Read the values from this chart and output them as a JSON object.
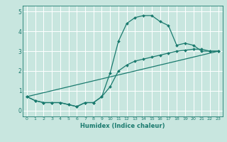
{
  "xlabel": "Humidex (Indice chaleur)",
  "ylabel": "",
  "background_color": "#c8e6df",
  "grid_color": "#ffffff",
  "line_color": "#1a7a6e",
  "xlim": [
    -0.5,
    23.5
  ],
  "ylim": [
    -0.3,
    5.3
  ],
  "xticks": [
    0,
    1,
    2,
    3,
    4,
    5,
    6,
    7,
    8,
    9,
    10,
    11,
    12,
    13,
    14,
    15,
    16,
    17,
    18,
    19,
    20,
    21,
    22,
    23
  ],
  "yticks": [
    0,
    1,
    2,
    3,
    4,
    5
  ],
  "curve1_x": [
    0,
    1,
    2,
    3,
    4,
    5,
    6,
    7,
    8,
    9,
    10,
    11,
    12,
    13,
    14,
    15,
    16,
    17,
    18,
    19,
    20,
    21,
    22,
    23
  ],
  "curve1_y": [
    0.7,
    0.5,
    0.4,
    0.4,
    0.4,
    0.3,
    0.2,
    0.4,
    0.4,
    0.7,
    1.9,
    3.5,
    4.4,
    4.7,
    4.8,
    4.8,
    4.5,
    4.3,
    3.3,
    3.4,
    3.3,
    3.0,
    3.0,
    3.0
  ],
  "curve2_x": [
    0,
    1,
    2,
    3,
    4,
    5,
    6,
    7,
    8,
    9,
    10,
    11,
    12,
    13,
    14,
    15,
    16,
    17,
    18,
    19,
    20,
    21,
    22,
    23
  ],
  "curve2_y": [
    0.7,
    0.5,
    0.4,
    0.4,
    0.4,
    0.3,
    0.2,
    0.4,
    0.4,
    0.7,
    1.2,
    2.0,
    2.3,
    2.5,
    2.6,
    2.7,
    2.8,
    2.9,
    3.0,
    3.05,
    3.1,
    3.1,
    3.0,
    3.0
  ],
  "curve3_x": [
    0,
    23
  ],
  "curve3_y": [
    0.7,
    3.0
  ]
}
